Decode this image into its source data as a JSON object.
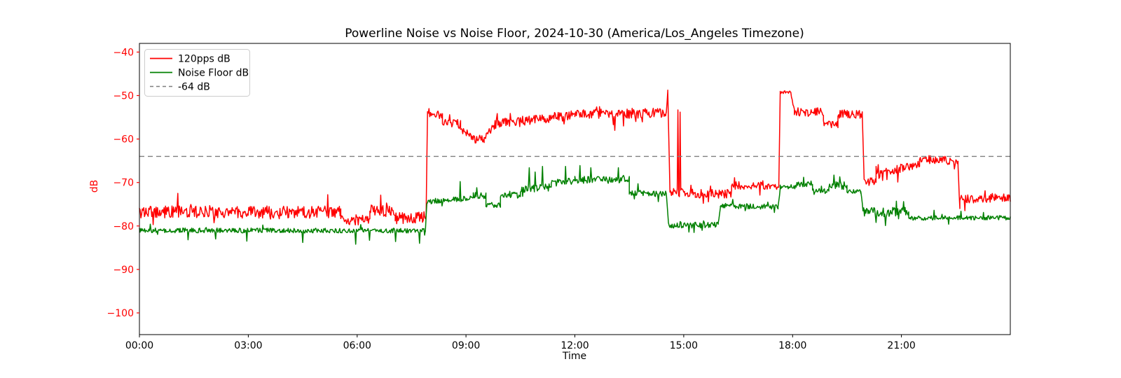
{
  "chart_data": {
    "type": "line",
    "title": "Powerline Noise vs Noise Floor, 2024-10-30 (America/Los_Angeles Timezone)",
    "xlabel": "Time",
    "ylabel": "dB",
    "xlim_hours": [
      0,
      24
    ],
    "ylim": [
      -105,
      -38
    ],
    "grid": false,
    "x_ticks_hours": [
      0,
      3,
      6,
      9,
      12,
      15,
      18,
      21
    ],
    "x_tick_labels": [
      "00:00",
      "03:00",
      "06:00",
      "09:00",
      "12:00",
      "15:00",
      "18:00",
      "21:00"
    ],
    "y_ticks": [
      -40,
      -50,
      -60,
      -70,
      -80,
      -90,
      -100
    ],
    "y_tick_labels": [
      "−40",
      "−50",
      "−60",
      "−70",
      "−80",
      "−90",
      "−100"
    ],
    "colors": {
      "series_120pps": "#ff0000",
      "series_noise_floor": "#008000",
      "reference_line": "#7f7f7f",
      "y_axis_text": "#ff0000",
      "x_axis_text": "#000000",
      "spine": "#000000",
      "legend_border": "#cccccc"
    },
    "reference_line": {
      "label": "-64 dB",
      "value": -64,
      "style": "dashed"
    },
    "legend": {
      "position": "upper left",
      "entries": [
        {
          "label": "120pps dB",
          "color": "#ff0000",
          "dashed": false
        },
        {
          "label": "Noise Floor dB",
          "color": "#008000",
          "dashed": false
        },
        {
          "label": "-64 dB",
          "color": "#7f7f7f",
          "dashed": true
        }
      ]
    },
    "sample_step_hours": 0.02,
    "series": [
      {
        "name": "120pps dB",
        "color": "#ff0000",
        "segments": [
          {
            "t": [
              0.0,
              5.55
            ],
            "v": [
              -76.8,
              -76.8
            ],
            "jitter": 1.4
          },
          {
            "t": [
              5.55,
              6.35
            ],
            "v": [
              -78.6,
              -78.6
            ],
            "jitter": 1.2
          },
          {
            "t": [
              6.35,
              7.05
            ],
            "v": [
              -76.6,
              -76.6
            ],
            "jitter": 1.4
          },
          {
            "t": [
              7.05,
              7.9
            ],
            "v": [
              -78.2,
              -78.0
            ],
            "jitter": 1.3
          },
          {
            "t": [
              7.9,
              7.94
            ],
            "v": [
              -77.5,
              -53.8
            ],
            "jitter": 0.3
          },
          {
            "t": [
              7.94,
              8.35
            ],
            "v": [
              -54.4,
              -54.4
            ],
            "jitter": 0.9
          },
          {
            "t": [
              8.35,
              8.85
            ],
            "v": [
              -56.4,
              -56.4
            ],
            "jitter": 0.9
          },
          {
            "t": [
              8.85,
              9.15
            ],
            "v": [
              -57.0,
              -59.8
            ],
            "jitter": 0.8
          },
          {
            "t": [
              9.15,
              9.5
            ],
            "v": [
              -60.0,
              -60.0
            ],
            "jitter": 0.9
          },
          {
            "t": [
              9.5,
              9.8
            ],
            "v": [
              -59.5,
              -56.8
            ],
            "jitter": 0.8
          },
          {
            "t": [
              9.8,
              12.0
            ],
            "v": [
              -56.5,
              -54.5
            ],
            "jitter": 1.1
          },
          {
            "t": [
              12.0,
              14.52
            ],
            "v": [
              -54.3,
              -54.0
            ],
            "jitter": 1.1
          },
          {
            "t": [
              14.52,
              14.56
            ],
            "v": [
              -54.0,
              -48.8
            ],
            "jitter": 0.2
          },
          {
            "t": [
              14.56,
              14.62
            ],
            "v": [
              -48.8,
              -72.0
            ],
            "jitter": 0.2
          },
          {
            "t": [
              14.62,
              15.32
            ],
            "v": [
              -72.4,
              -72.4
            ],
            "jitter": 1.0
          },
          {
            "t": [
              15.32,
              16.32
            ],
            "v": [
              -72.6,
              -72.6
            ],
            "jitter": 1.0
          },
          {
            "t": [
              16.32,
              17.62
            ],
            "v": [
              -70.7,
              -70.7
            ],
            "jitter": 0.9
          },
          {
            "t": [
              17.62,
              17.66
            ],
            "v": [
              -70.5,
              -49.5
            ],
            "jitter": 0.3
          },
          {
            "t": [
              17.66,
              17.95
            ],
            "v": [
              -49.2,
              -49.2
            ],
            "jitter": 0.4
          },
          {
            "t": [
              17.95,
              18.05
            ],
            "v": [
              -49.5,
              -53.5
            ],
            "jitter": 0.4
          },
          {
            "t": [
              18.05,
              18.85
            ],
            "v": [
              -53.8,
              -53.8
            ],
            "jitter": 1.0
          },
          {
            "t": [
              18.85,
              19.25
            ],
            "v": [
              -56.6,
              -56.6
            ],
            "jitter": 0.8
          },
          {
            "t": [
              19.25,
              19.92
            ],
            "v": [
              -54.2,
              -54.2
            ],
            "jitter": 1.1
          },
          {
            "t": [
              19.92,
              19.97
            ],
            "v": [
              -54.5,
              -69.0
            ],
            "jitter": 0.3
          },
          {
            "t": [
              19.97,
              20.3
            ],
            "v": [
              -69.8,
              -69.8
            ],
            "jitter": 0.9
          },
          {
            "t": [
              20.3,
              21.5
            ],
            "v": [
              -68.3,
              -65.6
            ],
            "jitter": 1.0
          },
          {
            "t": [
              21.5,
              22.56
            ],
            "v": [
              -65.0,
              -65.0
            ],
            "jitter": 0.9
          },
          {
            "t": [
              22.56,
              22.61
            ],
            "v": [
              -66.0,
              -76.2
            ],
            "jitter": 0.3
          },
          {
            "t": [
              22.61,
              24.0
            ],
            "v": [
              -73.9,
              -73.4
            ],
            "jitter": 1.0
          }
        ],
        "spikes": [
          [
            1.05,
            -72.5
          ],
          [
            5.2,
            -72.8
          ],
          [
            6.65,
            -72.9
          ],
          [
            7.98,
            -53.0
          ],
          [
            12.6,
            -52.6
          ],
          [
            13.1,
            -58.0
          ],
          [
            13.35,
            -57.0
          ],
          [
            14.85,
            -53.3
          ],
          [
            14.91,
            -53.8
          ],
          [
            15.55,
            -74.8
          ],
          [
            16.4,
            -68.9
          ],
          [
            17.1,
            -72.9
          ],
          [
            20.36,
            -65.9
          ],
          [
            20.9,
            -69.9
          ],
          [
            21.75,
            -63.8
          ],
          [
            22.2,
            -64.0
          ],
          [
            22.45,
            -66.9
          ],
          [
            22.75,
            -76.5
          ],
          [
            23.3,
            -71.9
          ]
        ]
      },
      {
        "name": "Noise Floor dB",
        "color": "#008000",
        "segments": [
          {
            "t": [
              0.0,
              7.88
            ],
            "v": [
              -81.0,
              -81.1
            ],
            "jitter": 0.55
          },
          {
            "t": [
              7.88,
              7.92
            ],
            "v": [
              -81.0,
              -74.8
            ],
            "jitter": 0.3
          },
          {
            "t": [
              7.92,
              9.2
            ],
            "v": [
              -74.4,
              -73.6
            ],
            "jitter": 0.6
          },
          {
            "t": [
              9.2,
              9.55
            ],
            "v": [
              -73.0,
              -73.0
            ],
            "jitter": 0.7
          },
          {
            "t": [
              9.55,
              9.95
            ],
            "v": [
              -75.2,
              -75.2
            ],
            "jitter": 0.6
          },
          {
            "t": [
              9.95,
              10.5
            ],
            "v": [
              -72.9,
              -72.9
            ],
            "jitter": 0.7
          },
          {
            "t": [
              10.5,
              11.35
            ],
            "v": [
              -71.4,
              -71.2
            ],
            "jitter": 0.9
          },
          {
            "t": [
              11.35,
              12.0
            ],
            "v": [
              -69.9,
              -69.7
            ],
            "jitter": 0.7
          },
          {
            "t": [
              12.0,
              13.5
            ],
            "v": [
              -69.4,
              -69.4
            ],
            "jitter": 0.8
          },
          {
            "t": [
              13.5,
              14.52
            ],
            "v": [
              -72.4,
              -72.6
            ],
            "jitter": 0.7
          },
          {
            "t": [
              14.52,
              14.58
            ],
            "v": [
              -72.6,
              -79.3
            ],
            "jitter": 0.3
          },
          {
            "t": [
              14.58,
              15.95
            ],
            "v": [
              -79.8,
              -79.8
            ],
            "jitter": 0.7
          },
          {
            "t": [
              15.95,
              16.01
            ],
            "v": [
              -79.5,
              -75.6
            ],
            "jitter": 0.3
          },
          {
            "t": [
              16.01,
              17.6
            ],
            "v": [
              -75.4,
              -75.6
            ],
            "jitter": 0.6
          },
          {
            "t": [
              17.6,
              17.66
            ],
            "v": [
              -75.8,
              -71.2
            ],
            "jitter": 0.3
          },
          {
            "t": [
              17.66,
              18.1
            ],
            "v": [
              -71.0,
              -71.0
            ],
            "jitter": 0.5
          },
          {
            "t": [
              18.1,
              18.55
            ],
            "v": [
              -70.4,
              -70.4
            ],
            "jitter": 0.8
          },
          {
            "t": [
              18.55,
              19.0
            ],
            "v": [
              -71.9,
              -71.9
            ],
            "jitter": 0.5
          },
          {
            "t": [
              19.0,
              19.5
            ],
            "v": [
              -70.7,
              -70.7
            ],
            "jitter": 0.9
          },
          {
            "t": [
              19.5,
              19.88
            ],
            "v": [
              -72.1,
              -72.1
            ],
            "jitter": 0.5
          },
          {
            "t": [
              19.88,
              19.94
            ],
            "v": [
              -72.2,
              -76.3
            ],
            "jitter": 0.3
          },
          {
            "t": [
              19.94,
              21.2
            ],
            "v": [
              -76.8,
              -76.8
            ],
            "jitter": 1.1
          },
          {
            "t": [
              21.2,
              24.0
            ],
            "v": [
              -78.2,
              -78.1
            ],
            "jitter": 0.5
          }
        ],
        "spikes": [
          [
            0.3,
            -79.6
          ],
          [
            1.35,
            -83.2
          ],
          [
            2.1,
            -83.0
          ],
          [
            2.95,
            -83.5
          ],
          [
            3.4,
            -79.8
          ],
          [
            4.5,
            -83.8
          ],
          [
            5.95,
            -84.2
          ],
          [
            6.1,
            -79.7
          ],
          [
            6.35,
            -83.3
          ],
          [
            7.05,
            -83.6
          ],
          [
            7.72,
            -84.0
          ],
          [
            8.85,
            -69.8
          ],
          [
            9.3,
            -71.2
          ],
          [
            10.75,
            -66.6
          ],
          [
            10.9,
            -67.6
          ],
          [
            11.1,
            -66.3
          ],
          [
            11.75,
            -66.3
          ],
          [
            12.15,
            -66.1
          ],
          [
            12.45,
            -66.6
          ],
          [
            13.2,
            -66.6
          ],
          [
            13.75,
            -70.3
          ],
          [
            14.3,
            -74.4
          ],
          [
            15.15,
            -81.4
          ],
          [
            15.5,
            -81.0
          ],
          [
            16.35,
            -73.9
          ],
          [
            17.5,
            -76.9
          ],
          [
            18.3,
            -68.8
          ],
          [
            19.15,
            -68.3
          ],
          [
            19.3,
            -68.7
          ],
          [
            20.3,
            -79.2
          ],
          [
            20.55,
            -79.9
          ],
          [
            20.85,
            -74.3
          ],
          [
            21.05,
            -74.4
          ],
          [
            21.9,
            -76.4
          ],
          [
            22.3,
            -79.6
          ],
          [
            22.65,
            -76.6
          ],
          [
            23.25,
            -76.9
          ]
        ]
      }
    ]
  }
}
